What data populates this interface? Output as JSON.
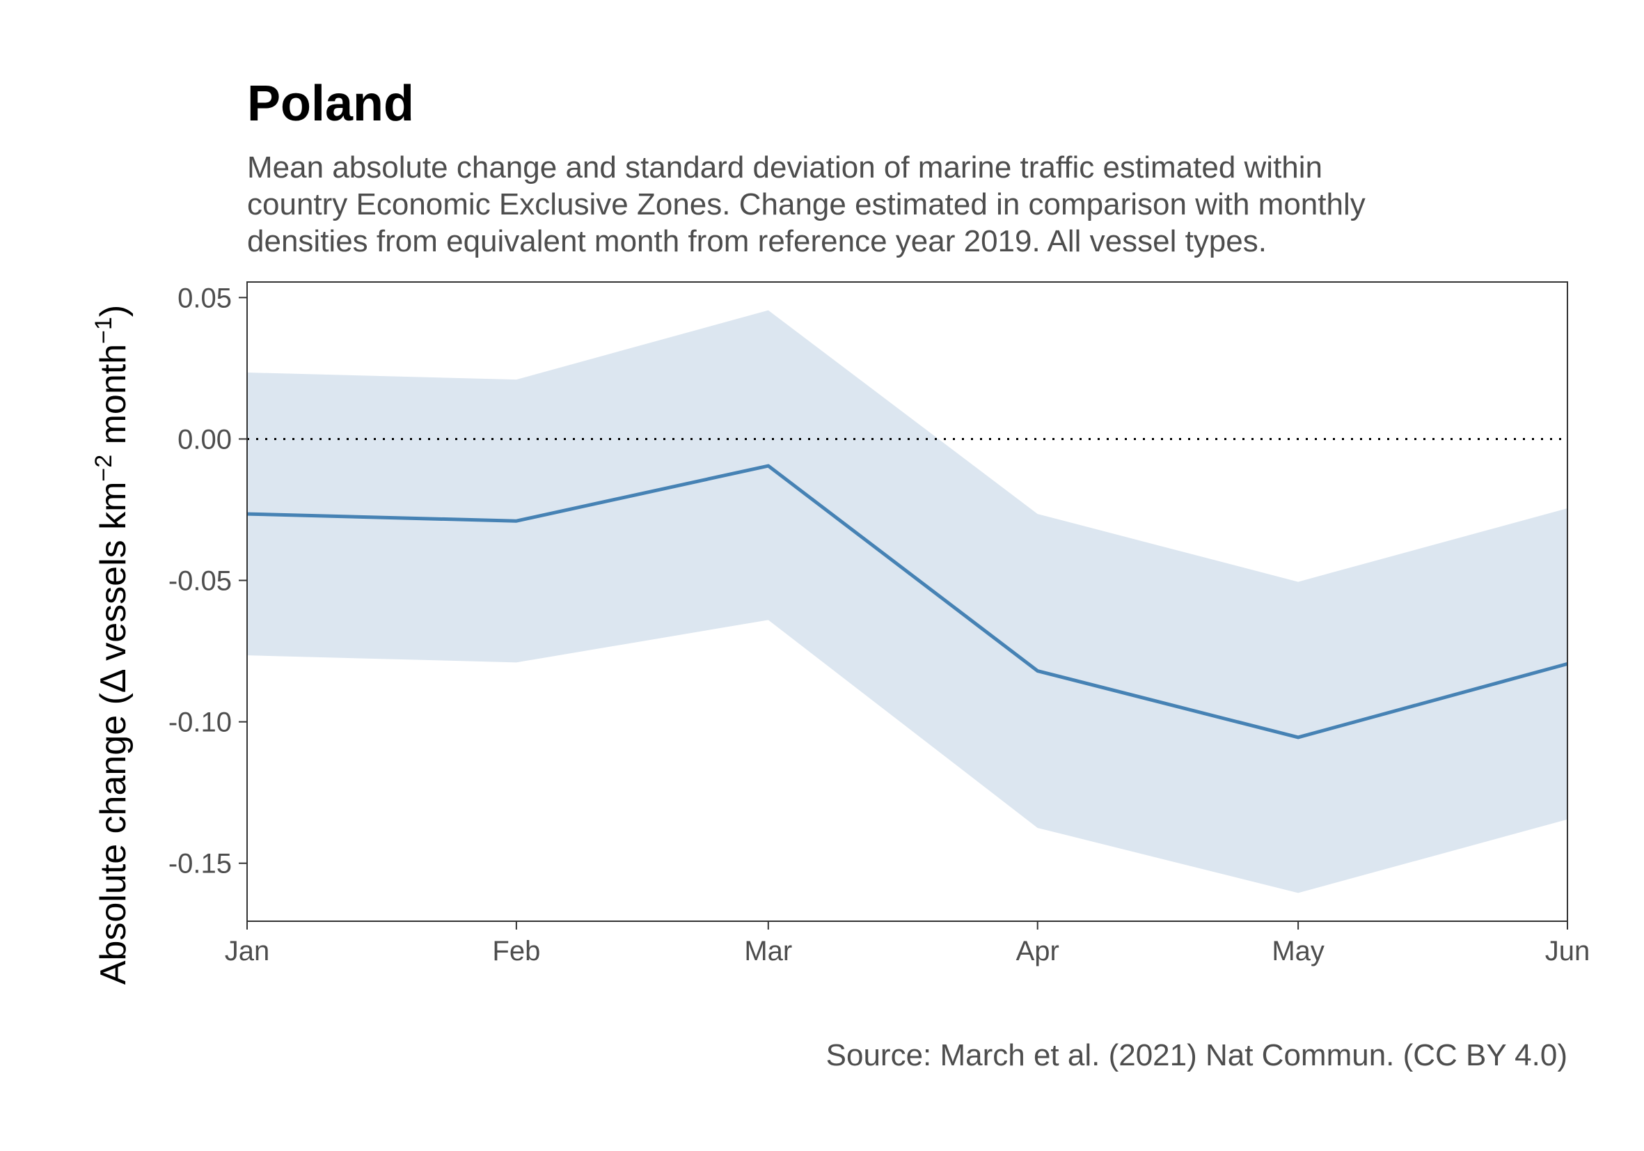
{
  "chart_data": {
    "type": "line",
    "title": "Poland",
    "subtitle_lines": [
      "Mean absolute change and standard deviation of marine traffic estimated within",
      "country Economic Exclusive Zones. Change estimated in comparison with monthly",
      "densities from equivalent month from reference year 2019. All vessel types."
    ],
    "ylabel": {
      "prefix": "Absolute change (",
      "delta": "Δ",
      "units_main": " vessels km",
      "sup1": "−2",
      "units_mid": " month",
      "sup2": "−1",
      "suffix": ")"
    },
    "xlabel": "",
    "caption": "Source: March et al. (2021) Nat Commun. (CC BY 4.0)",
    "x": [
      "Jan",
      "Feb",
      "Mar",
      "Apr",
      "May",
      "Jun"
    ],
    "x_dates": [
      "2020-01-01",
      "2020-02-01",
      "2020-03-01",
      "2020-04-01",
      "2020-05-01",
      "2020-06-01"
    ],
    "series": [
      {
        "values": [
          -0.0265,
          -0.029,
          -0.0095,
          -0.082,
          -0.1055,
          -0.0795
        ],
        "lower": [
          -0.0765,
          -0.079,
          -0.064,
          -0.1375,
          -0.1605,
          -0.1345
        ],
        "upper": [
          0.0235,
          0.021,
          0.0455,
          -0.0265,
          -0.0505,
          -0.0245
        ]
      }
    ],
    "ylim": [
      -0.1705,
      0.0555
    ],
    "y_ticks": [
      "0.05",
      "0.00",
      "-0.05",
      "-0.10",
      "-0.15"
    ],
    "reference_line": 0,
    "grid": false,
    "colors": {
      "line": "#4682b4",
      "ribbon": "#dce6f0",
      "reference": "#000000"
    }
  }
}
